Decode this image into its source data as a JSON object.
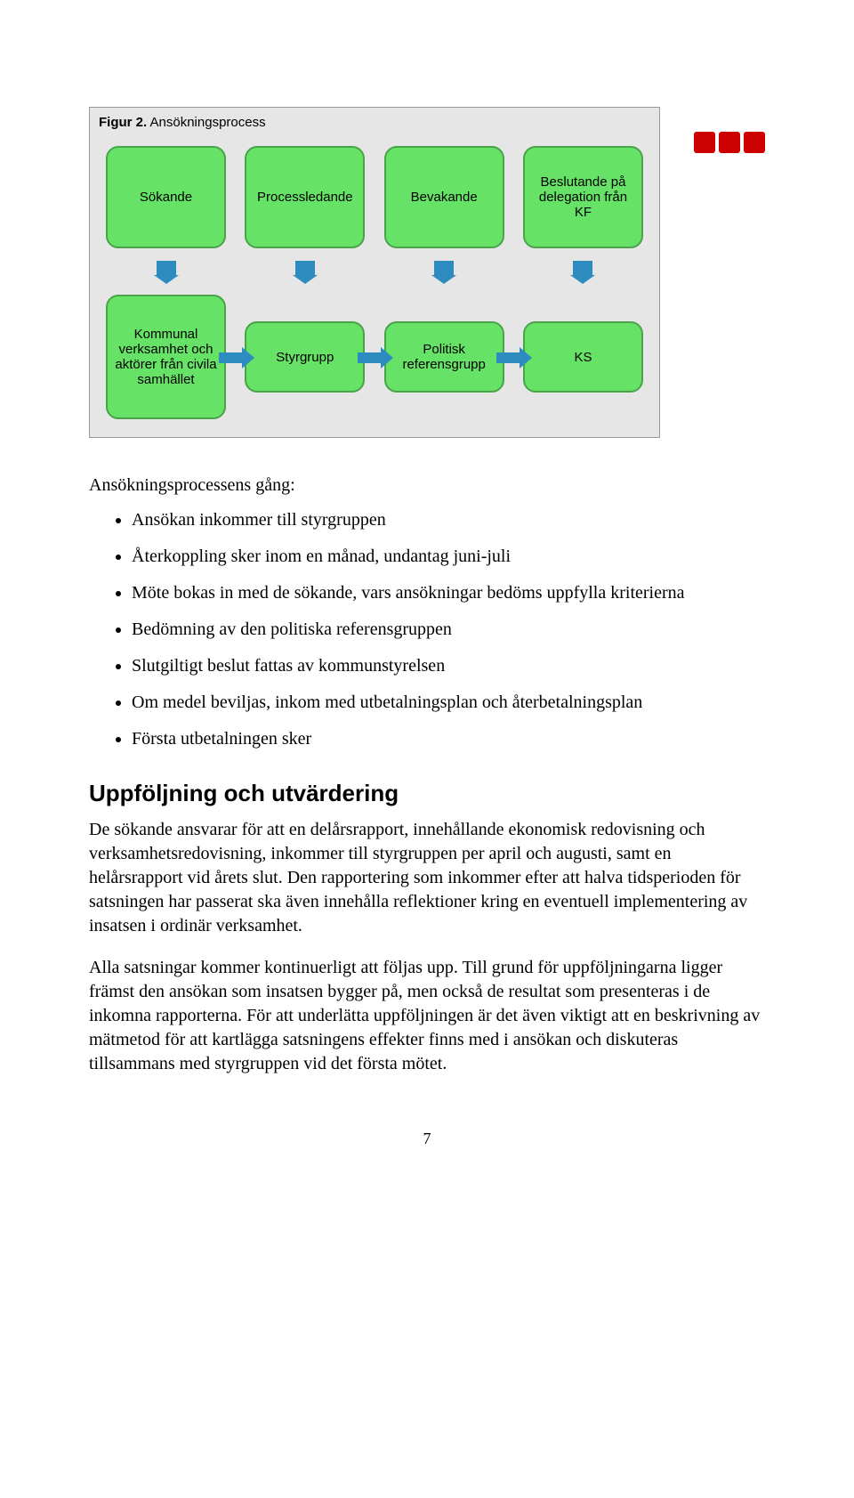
{
  "logo": {
    "color": "#cc0000"
  },
  "figure": {
    "caption_bold": "Figur 2.",
    "caption_rest": "Ansökningsprocess",
    "bg": "#e6e6e6",
    "box_fill": "#66e266",
    "box_border": "#49a349",
    "arrow_color": "#2e8bc0",
    "top_boxes": [
      "Sökande",
      "Processledande",
      "Bevakande",
      "Beslutande på delegation från KF"
    ],
    "bottom_boxes": [
      "Kommunal verksamhet och aktörer från civila samhället",
      "Styrgrupp",
      "Politisk referensgrupp",
      "KS"
    ]
  },
  "body": {
    "intro": "Ansökningsprocessens gång:",
    "bullets": [
      "Ansökan inkommer till styrgruppen",
      "Återkoppling sker inom en månad, undantag juni-juli",
      "Möte bokas in med de sökande, vars ansökningar bedöms uppfylla kriterierna",
      "Bedömning av den politiska referensgruppen",
      "Slutgiltigt beslut fattas av kommunstyrelsen",
      "Om medel beviljas, inkom med utbetalningsplan och återbetalningsplan",
      "Första utbetalningen sker"
    ],
    "heading": "Uppföljning och utvärdering",
    "para1": "De sökande ansvarar för att en delårsrapport, innehållande ekonomisk redovisning och verksamhetsredovisning, inkommer till styrgruppen per april och augusti, samt en helårsrapport vid årets slut. Den rapportering som inkommer efter att halva tidsperioden för satsningen har passerat ska även innehålla reflektioner kring en eventuell implementering av insatsen i ordinär verksamhet.",
    "para2": "Alla satsningar kommer kontinuerligt att följas upp. Till grund för uppföljningarna ligger främst den ansökan som insatsen bygger på, men också de resultat som presenteras i de inkomna rapporterna. För att underlätta uppföljningen är det även viktigt att en beskrivning av mätmetod för att kartlägga satsningens effekter finns med i ansökan och diskuteras tillsammans med styrgruppen vid det första mötet."
  },
  "page_number": "7"
}
